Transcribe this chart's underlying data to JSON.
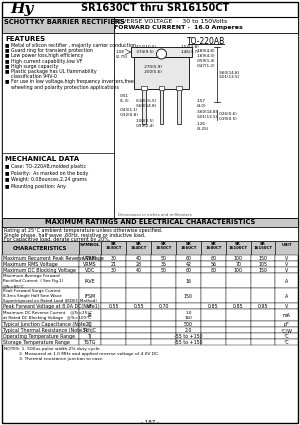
{
  "title": "SR1630CT thru SR16150CT",
  "subtitle_left": "SCHOTTKY BARRIER RECTIFIERS",
  "subtitle_right_line1": "REVERSE VOLTAGE  ·  30 to 150Volts",
  "subtitle_right_line2": "FORWARD CURRENT ·  16.0 Amperes",
  "logo_text": "Hy",
  "package": "TO-220AB",
  "features_title": "FEATURES",
  "features": [
    "Metal of silicon rectifier , majority carrier conduction",
    "Guard ring for transient protection",
    "Low power loss,high efficiency",
    "High current capability,low VF",
    "High surge capacity",
    "Plastic package has UL flammability",
    "  classification 94V-0",
    "For use in low voltage,high frequency inverters,free",
    "  wheeling and polarity protection applications"
  ],
  "mechanical_title": "MECHANICAL DATA",
  "mechanical": [
    "Case: TO-220AB,molded plastic",
    "Polarity:  As marked on the body",
    "Weight: 0.08ounces,2.24 grams",
    "Mounting position: Any"
  ],
  "max_ratings_title": "MAXIMUM RATINGS AND ELECTRICAL CHARACTERISTICS",
  "rating_note1": "Rating at 25°C ambient temperature unless otherwise specified.",
  "rating_note2": "Single phase, half wave ,60Hz, resistive or inductive load.",
  "rating_note3": "For capacitive load, derate current by 20%.",
  "table_headers_row1": [
    "",
    "",
    "SR",
    "SR",
    "SR",
    "SR",
    "SR",
    "SR",
    "SR",
    ""
  ],
  "table_headers_row2": [
    "CHARACTERISTICS",
    "SYMBOL",
    "SR1630CT",
    "SR1640CT",
    "SR1650CT",
    "SR1660CT",
    "SR1680CT",
    "SR16100CT",
    "SR16150CT",
    "UNIT"
  ],
  "table_rows": [
    [
      "Maximum Recurrent Peak Reverse Voltage",
      "VRRM",
      "30",
      "40",
      "50",
      "60",
      "80",
      "100",
      "150",
      "V"
    ],
    [
      "Maximum RMS Voltage",
      "VRMS",
      "21",
      "28",
      "35",
      "42",
      "56",
      "70",
      "105",
      "V"
    ],
    [
      "Maximum DC Blocking Voltage",
      "VDC",
      "30",
      "40",
      "50",
      "60",
      "80",
      "100",
      "150",
      "V"
    ],
    [
      "Maximum Average Forward\nRectified Current  ( See Fig.1)\n@Tc=85°C",
      "IAVE",
      "",
      "",
      "",
      "16",
      "",
      "",
      "",
      "A"
    ],
    [
      "Peak Forward Surge Current\n8.3ms Single Half Sine Wave\nSuperimposed on Rated Load (JEDEC Method)",
      "IFSM",
      "",
      "",
      "",
      "150",
      "",
      "",
      "",
      "A"
    ],
    [
      "Peak Forward Voltage at 8.0A DC(Note1)",
      "VF",
      "0.55",
      "0.55",
      "0.70",
      "",
      "0.85",
      "0.85",
      "0.95",
      "V"
    ],
    [
      "Maximum DC Reverse Current    @Tc=25°C\nat Rated DC Blocking Voltage   @Tc=100°C",
      "IR",
      "",
      "",
      "",
      "1.0\n160",
      "",
      "",
      "",
      "mA"
    ],
    [
      "Typical Junction Capacitance (Note2)",
      "CJ",
      "",
      "",
      "",
      "500",
      "",
      "",
      "",
      "pF"
    ],
    [
      "Typical Thermal Resistance (Note3)",
      "RthJC",
      "",
      "",
      "",
      "2.0",
      "",
      "",
      "",
      "°C/W"
    ],
    [
      "Operating Temperature Range",
      "TJ",
      "",
      "",
      "",
      "-55 to +150",
      "",
      "",
      "",
      "°C"
    ],
    [
      "Storage Temperature Range",
      "TSTG",
      "",
      "",
      "",
      "-55 to +150",
      "",
      "",
      "",
      "°C"
    ]
  ],
  "notes": [
    "NOTES: 1. 500us pulse width,2% duty cycle.",
    "           2. Measured at 1.0 MHz and applied reverse voltage of 4.0V DC.",
    "           3. Thermal resistance junction to case."
  ],
  "page_num": "- 187 -",
  "bg_color": "#ffffff"
}
